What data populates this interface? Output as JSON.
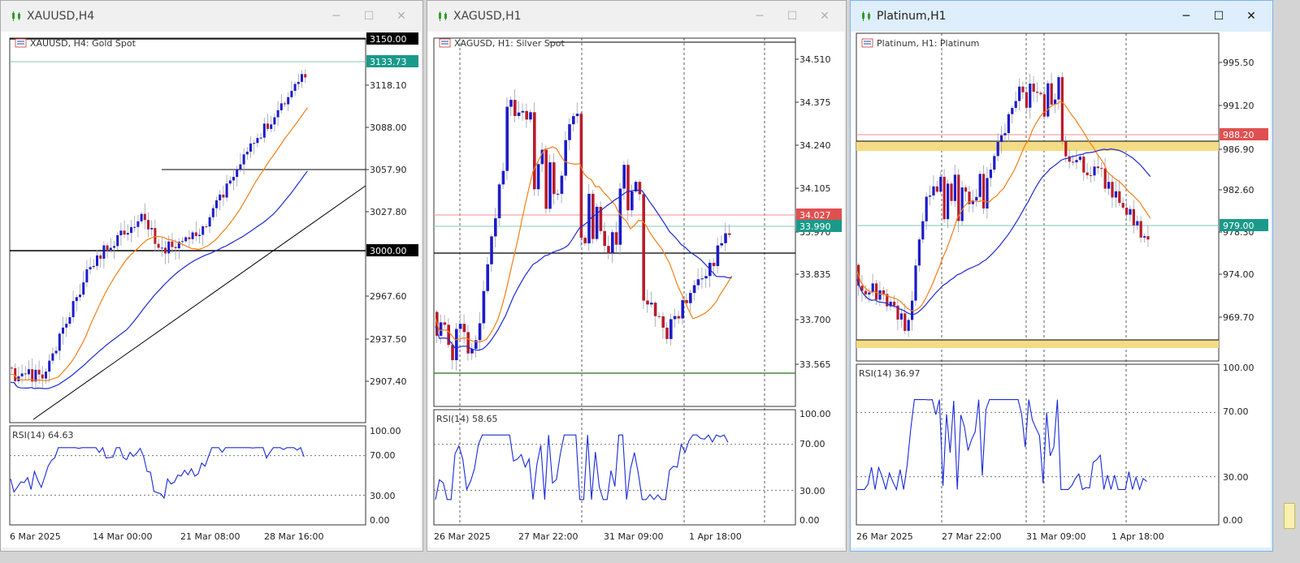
{
  "windows": [
    {
      "key": "gold",
      "title": "XAUUSD,H4",
      "legend": "XAUUSD, H4:  Gold Spot",
      "active": false,
      "price_axis_labels": [
        "3118.10",
        "3088.00",
        "3057.90",
        "3027.80",
        "2967.60",
        "2937.50",
        "2907.40"
      ],
      "price_tags": [
        {
          "text": "3150.00",
          "color": "#000000"
        },
        {
          "text": "3133.73",
          "color": "#1a9a8a"
        },
        {
          "text": "3000.00",
          "color": "#000000"
        }
      ],
      "rsi_label": "RSI(14) 64.63",
      "rsi_axis": [
        "100.00",
        "70.00",
        "30.00",
        "0.00"
      ],
      "time_labels": [
        "6 Mar 2025",
        "14 Mar 00:00",
        "21 Mar 08:00",
        "28 Mar 16:00"
      ]
    },
    {
      "key": "silver",
      "title": "XAGUSD,H1",
      "legend": "XAGUSD, H1:  Silver Spot",
      "active": false,
      "price_axis_labels": [
        "34.510",
        "34.375",
        "34.240",
        "34.105",
        "33.970",
        "33.835",
        "33.700",
        "33.565"
      ],
      "price_tags": [
        {
          "text": "34.027",
          "color": "#e05050"
        },
        {
          "text": "33.990",
          "color": "#1a9a8a"
        }
      ],
      "rsi_label": "RSI(14) 58.65",
      "rsi_axis": [
        "100.00",
        "70.00",
        "30.00",
        "0.00"
      ],
      "time_labels": [
        "26 Mar 2025",
        "27 Mar 22:00",
        "31 Mar 09:00",
        "1 Apr 18:00"
      ]
    },
    {
      "key": "platinum",
      "title": "Platinum,H1",
      "legend": "Platinum, H1:  Platinum",
      "active": true,
      "price_axis_labels": [
        "995.50",
        "991.20",
        "986.90",
        "982.60",
        "978.30",
        "974.00",
        "969.70"
      ],
      "price_tags": [
        {
          "text": "988.20",
          "color": "#e05050"
        },
        {
          "text": "979.00",
          "color": "#1a9a8a"
        }
      ],
      "rsi_label": "RSI(14) 36.97",
      "rsi_axis": [
        "100.00",
        "70.00",
        "30.00",
        "0.00"
      ],
      "time_labels": [
        "26 Mar 2025",
        "27 Mar 22:00",
        "31 Mar 09:00",
        "1 Apr 18:00"
      ]
    }
  ],
  "window_buttons": {
    "minimize": "─",
    "maximize": "☐",
    "close": "✕"
  },
  "colors": {
    "bull": "#1c1cc8",
    "bear": "#b81c2c",
    "ma_fast": "#f57f17",
    "ma_slow": "#1f2bd1",
    "rsi": "#1a2bd8",
    "zone": "#f3dc85"
  }
}
